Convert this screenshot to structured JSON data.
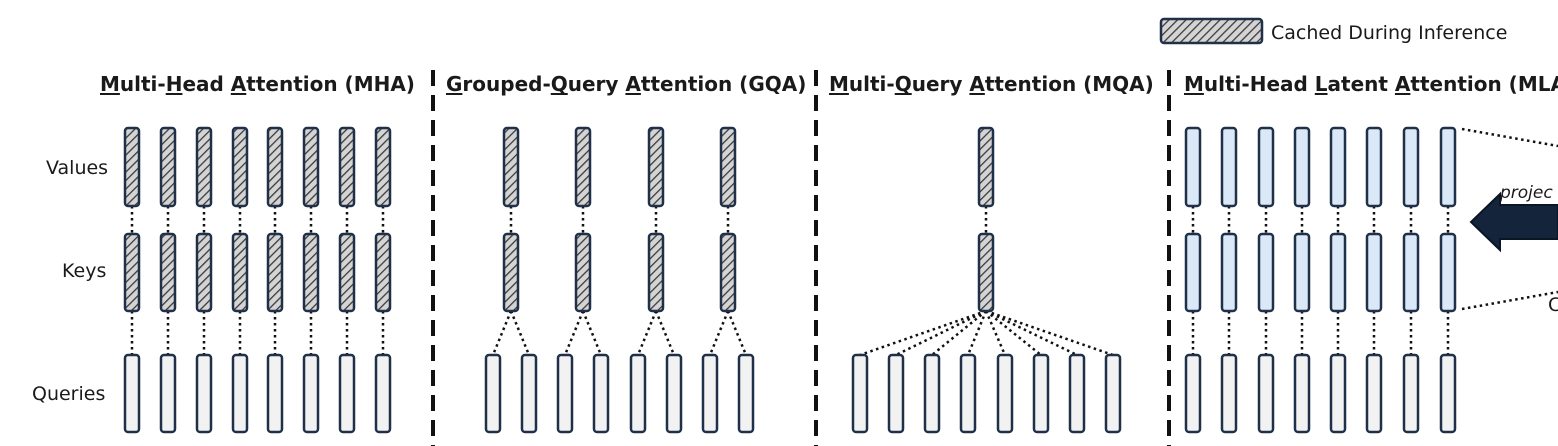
{
  "legend": {
    "label": "Cached During Inference"
  },
  "row_labels": {
    "values": "Values",
    "keys": "Keys",
    "queries": "Queries"
  },
  "sections": [
    {
      "id": "mha",
      "title": "Multi-Head Attention (MHA)",
      "underlined_letters": [
        "M",
        "H",
        "A"
      ],
      "query_heads": 8,
      "kv_heads": 8,
      "kv_cached": true
    },
    {
      "id": "gqa",
      "title": "Grouped-Query Attention (GQA)",
      "underlined_letters": [
        "G",
        "Q",
        "A"
      ],
      "query_heads": 8,
      "kv_heads": 4,
      "kv_cached": true
    },
    {
      "id": "mqa",
      "title": "Multi-Query Attention (MQA)",
      "underlined_letters": [
        "M",
        "Q",
        "A"
      ],
      "query_heads": 8,
      "kv_heads": 1,
      "kv_cached": true
    },
    {
      "id": "mla",
      "title": "Multi-Head Latent Attention (MLA",
      "underlined_letters": [
        "M",
        "L",
        "A"
      ],
      "query_heads": 8,
      "kv_heads": 8,
      "kv_cached": false
    }
  ],
  "mla_annotations": {
    "projection_text": "projec",
    "cut_letter": "C"
  }
}
